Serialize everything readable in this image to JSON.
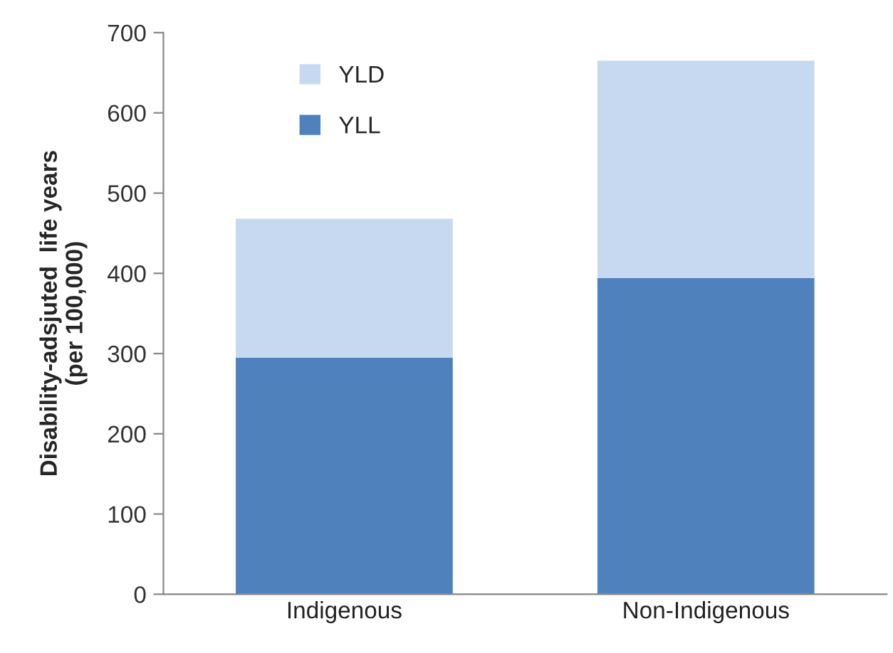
{
  "chart_data": {
    "type": "bar",
    "stacked": true,
    "ylabel": "Disability-adsjuted  life years\n(per 100,000)",
    "categories": [
      "Indigenous",
      "Non-Indigenous"
    ],
    "series": [
      {
        "name": "YLL",
        "color": "#4f81bd",
        "values": [
          295,
          394
        ]
      },
      {
        "name": "YLD",
        "color": "#c6d9f1",
        "values": [
          173,
          271
        ]
      }
    ],
    "ylim": [
      0,
      700
    ],
    "yticks": [
      0,
      100,
      200,
      300,
      400,
      500,
      600,
      700
    ],
    "grid": false,
    "legend": "top left"
  }
}
